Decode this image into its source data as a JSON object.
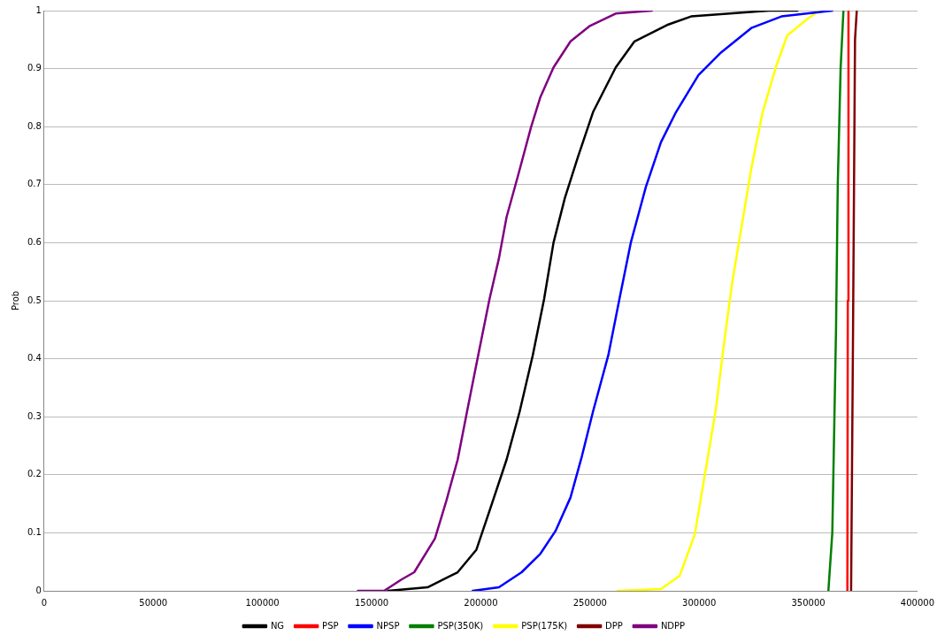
{
  "chart_data": {
    "type": "line",
    "ylabel": "Prob",
    "xlim": [
      0,
      400000
    ],
    "xticks": [
      0,
      50000,
      100000,
      150000,
      200000,
      250000,
      300000,
      350000,
      400000
    ],
    "ylim": [
      0,
      1
    ],
    "yticks": [
      0,
      0.1,
      0.2,
      0.3,
      0.4,
      0.5,
      0.6,
      0.7,
      0.8,
      0.9,
      1
    ],
    "grid": "y",
    "legend": "bottom",
    "marker": "none",
    "line_style": "solid",
    "series": [
      {
        "name": "NG",
        "color": "#000000",
        "x": [
          157500,
          175600,
          189400,
          198000,
          204900,
          211800,
          217800,
          223800,
          229000,
          233300,
          238500,
          244500,
          251400,
          261800,
          270400,
          285900,
          296300,
          332000,
          345000
        ],
        "values": [
          0,
          0.006,
          0.032,
          0.071,
          0.148,
          0.226,
          0.309,
          0.406,
          0.503,
          0.6,
          0.677,
          0.748,
          0.825,
          0.902,
          0.947,
          0.976,
          0.99,
          1,
          1
        ]
      },
      {
        "name": "PSP",
        "color": "#ff0000",
        "x": [
          367900,
          368100,
          368400
        ],
        "values": [
          0,
          0.5,
          1
        ]
      },
      {
        "name": "NPSP",
        "color": "#0000ff",
        "x": [
          196300,
          208300,
          218700,
          227300,
          234200,
          241100,
          246300,
          251400,
          258400,
          263500,
          268700,
          275600,
          282500,
          289400,
          299700,
          310100,
          323900,
          337700,
          361000
        ],
        "values": [
          0,
          0.006,
          0.032,
          0.064,
          0.103,
          0.161,
          0.232,
          0.309,
          0.406,
          0.503,
          0.6,
          0.696,
          0.773,
          0.825,
          0.889,
          0.928,
          0.97,
          0.99,
          1
        ]
      },
      {
        "name": "PSP(350K)",
        "color": "#008000",
        "x": [
          359200,
          361000,
          362700,
          363500,
          364800,
          366100
        ],
        "values": [
          0,
          0.1,
          0.45,
          0.7,
          0.9,
          1
        ]
      },
      {
        "name": "PSP(175K)",
        "color": "#ffff00",
        "x": [
          262600,
          282500,
          291100,
          298000,
          303200,
          307500,
          311800,
          315300,
          319600,
          323900,
          329100,
          335100,
          340300,
          349700,
          355000
        ],
        "values": [
          0,
          0.003,
          0.026,
          0.097,
          0.213,
          0.309,
          0.438,
          0.535,
          0.631,
          0.728,
          0.825,
          0.902,
          0.957,
          0.986,
          1
        ]
      },
      {
        "name": "DPP",
        "color": "#800000",
        "x": [
          369600,
          370500,
          371400,
          372200
        ],
        "values": [
          0,
          0.45,
          0.95,
          1
        ]
      },
      {
        "name": "NDPP",
        "color": "#800080",
        "x": [
          143700,
          155700,
          163500,
          169500,
          179000,
          184200,
          189400,
          193700,
          198800,
          204000,
          208300,
          211800,
          217000,
          223000,
          227300,
          233300,
          241100,
          249700,
          261800,
          278400
        ],
        "values": [
          0,
          0,
          0.019,
          0.032,
          0.09,
          0.155,
          0.226,
          0.309,
          0.406,
          0.503,
          0.573,
          0.644,
          0.715,
          0.799,
          0.851,
          0.902,
          0.947,
          0.973,
          0.995,
          1
        ]
      }
    ]
  }
}
